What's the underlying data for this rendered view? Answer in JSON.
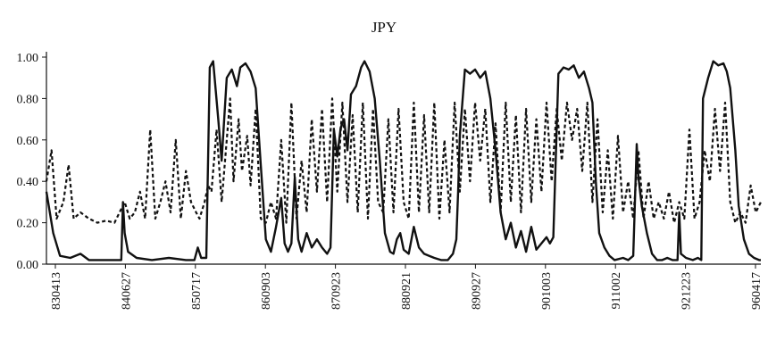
{
  "chart_data": {
    "type": "line",
    "title": "JPY",
    "xlabel": "",
    "ylabel": "",
    "ylim": [
      0,
      1
    ],
    "y_ticks": [
      "0.00",
      "0.20",
      "0.40",
      "0.60",
      "0.80",
      "1.00"
    ],
    "x_ticks": [
      "830413",
      "840627",
      "850717",
      "860903",
      "870923",
      "880921",
      "890927",
      "901003",
      "911002",
      "921223",
      "960417"
    ],
    "grid": false,
    "legend": "none",
    "colors": {
      "ink": "#111111"
    },
    "series": [
      {
        "style": "solid",
        "points": [
          [
            0,
            0.35
          ],
          [
            0.4,
            0.15
          ],
          [
            0.8,
            0.04
          ],
          [
            1.4,
            0.03
          ],
          [
            2.0,
            0.05
          ],
          [
            2.5,
            0.02
          ],
          [
            3.2,
            0.02
          ],
          [
            4.0,
            0.02
          ],
          [
            4.4,
            0.02
          ],
          [
            4.5,
            0.3
          ],
          [
            4.6,
            0.15
          ],
          [
            4.8,
            0.06
          ],
          [
            5.3,
            0.03
          ],
          [
            6.2,
            0.02
          ],
          [
            7.2,
            0.03
          ],
          [
            8.2,
            0.02
          ],
          [
            8.7,
            0.02
          ],
          [
            8.9,
            0.08
          ],
          [
            9.1,
            0.03
          ],
          [
            9.4,
            0.03
          ],
          [
            9.6,
            0.95
          ],
          [
            9.8,
            0.98
          ],
          [
            10.1,
            0.7
          ],
          [
            10.3,
            0.5
          ],
          [
            10.6,
            0.9
          ],
          [
            10.9,
            0.94
          ],
          [
            11.2,
            0.86
          ],
          [
            11.4,
            0.95
          ],
          [
            11.7,
            0.97
          ],
          [
            12.0,
            0.93
          ],
          [
            12.3,
            0.85
          ],
          [
            12.6,
            0.48
          ],
          [
            12.9,
            0.12
          ],
          [
            13.2,
            0.06
          ],
          [
            13.5,
            0.18
          ],
          [
            13.8,
            0.32
          ],
          [
            14.0,
            0.1
          ],
          [
            14.2,
            0.06
          ],
          [
            14.4,
            0.1
          ],
          [
            14.6,
            0.42
          ],
          [
            14.8,
            0.12
          ],
          [
            15.0,
            0.06
          ],
          [
            15.3,
            0.15
          ],
          [
            15.6,
            0.08
          ],
          [
            15.9,
            0.12
          ],
          [
            16.2,
            0.08
          ],
          [
            16.5,
            0.05
          ],
          [
            16.7,
            0.08
          ],
          [
            16.9,
            0.65
          ],
          [
            17.1,
            0.52
          ],
          [
            17.3,
            0.66
          ],
          [
            17.5,
            0.7
          ],
          [
            17.7,
            0.55
          ],
          [
            17.9,
            0.82
          ],
          [
            18.2,
            0.86
          ],
          [
            18.5,
            0.95
          ],
          [
            18.7,
            0.98
          ],
          [
            19.0,
            0.93
          ],
          [
            19.3,
            0.8
          ],
          [
            19.6,
            0.5
          ],
          [
            19.9,
            0.15
          ],
          [
            20.2,
            0.06
          ],
          [
            20.4,
            0.05
          ],
          [
            20.6,
            0.12
          ],
          [
            20.8,
            0.15
          ],
          [
            21.0,
            0.07
          ],
          [
            21.3,
            0.05
          ],
          [
            21.6,
            0.18
          ],
          [
            21.9,
            0.08
          ],
          [
            22.2,
            0.05
          ],
          [
            22.5,
            0.04
          ],
          [
            22.8,
            0.03
          ],
          [
            23.2,
            0.02
          ],
          [
            23.6,
            0.02
          ],
          [
            23.9,
            0.05
          ],
          [
            24.1,
            0.12
          ],
          [
            24.2,
            0.35
          ],
          [
            24.3,
            0.62
          ],
          [
            24.6,
            0.94
          ],
          [
            24.9,
            0.92
          ],
          [
            25.2,
            0.94
          ],
          [
            25.5,
            0.9
          ],
          [
            25.8,
            0.93
          ],
          [
            26.1,
            0.8
          ],
          [
            26.4,
            0.55
          ],
          [
            26.7,
            0.25
          ],
          [
            27.0,
            0.12
          ],
          [
            27.3,
            0.2
          ],
          [
            27.6,
            0.08
          ],
          [
            27.9,
            0.16
          ],
          [
            28.2,
            0.06
          ],
          [
            28.5,
            0.18
          ],
          [
            28.8,
            0.07
          ],
          [
            29.1,
            0.1
          ],
          [
            29.4,
            0.13
          ],
          [
            29.6,
            0.1
          ],
          [
            29.8,
            0.13
          ],
          [
            30.1,
            0.92
          ],
          [
            30.4,
            0.95
          ],
          [
            30.7,
            0.94
          ],
          [
            31.0,
            0.96
          ],
          [
            31.3,
            0.9
          ],
          [
            31.6,
            0.93
          ],
          [
            31.9,
            0.85
          ],
          [
            32.1,
            0.78
          ],
          [
            32.3,
            0.4
          ],
          [
            32.5,
            0.15
          ],
          [
            32.8,
            0.08
          ],
          [
            33.1,
            0.04
          ],
          [
            33.4,
            0.02
          ],
          [
            33.9,
            0.03
          ],
          [
            34.2,
            0.02
          ],
          [
            34.5,
            0.04
          ],
          [
            34.7,
            0.58
          ],
          [
            34.8,
            0.42
          ],
          [
            35.0,
            0.28
          ],
          [
            35.3,
            0.15
          ],
          [
            35.6,
            0.05
          ],
          [
            35.9,
            0.02
          ],
          [
            36.2,
            0.02
          ],
          [
            36.5,
            0.03
          ],
          [
            36.8,
            0.02
          ],
          [
            37.1,
            0.02
          ],
          [
            37.2,
            0.25
          ],
          [
            37.3,
            0.05
          ],
          [
            37.6,
            0.03
          ],
          [
            38.0,
            0.02
          ],
          [
            38.3,
            0.03
          ],
          [
            38.5,
            0.02
          ],
          [
            38.6,
            0.8
          ],
          [
            38.9,
            0.9
          ],
          [
            39.2,
            0.98
          ],
          [
            39.5,
            0.96
          ],
          [
            39.8,
            0.97
          ],
          [
            40.0,
            0.93
          ],
          [
            40.2,
            0.85
          ],
          [
            40.5,
            0.55
          ],
          [
            40.7,
            0.28
          ],
          [
            41.0,
            0.12
          ],
          [
            41.3,
            0.05
          ],
          [
            41.6,
            0.03
          ],
          [
            41.9,
            0.02
          ],
          [
            42.0,
            0.02
          ]
        ]
      },
      {
        "style": "dashed",
        "points": [
          [
            0,
            0.4
          ],
          [
            0.3,
            0.55
          ],
          [
            0.6,
            0.22
          ],
          [
            1.0,
            0.3
          ],
          [
            1.3,
            0.48
          ],
          [
            1.6,
            0.22
          ],
          [
            2.0,
            0.25
          ],
          [
            2.5,
            0.22
          ],
          [
            3.0,
            0.2
          ],
          [
            3.5,
            0.21
          ],
          [
            4.0,
            0.2
          ],
          [
            4.3,
            0.25
          ],
          [
            4.6,
            0.3
          ],
          [
            4.9,
            0.22
          ],
          [
            5.2,
            0.25
          ],
          [
            5.5,
            0.35
          ],
          [
            5.8,
            0.22
          ],
          [
            6.1,
            0.65
          ],
          [
            6.4,
            0.22
          ],
          [
            6.7,
            0.3
          ],
          [
            7.0,
            0.4
          ],
          [
            7.3,
            0.25
          ],
          [
            7.6,
            0.6
          ],
          [
            7.9,
            0.22
          ],
          [
            8.2,
            0.45
          ],
          [
            8.5,
            0.3
          ],
          [
            8.8,
            0.25
          ],
          [
            9.0,
            0.22
          ],
          [
            9.3,
            0.3
          ],
          [
            9.5,
            0.38
          ],
          [
            9.7,
            0.35
          ],
          [
            10.0,
            0.65
          ],
          [
            10.3,
            0.3
          ],
          [
            10.5,
            0.5
          ],
          [
            10.8,
            0.8
          ],
          [
            11.0,
            0.4
          ],
          [
            11.3,
            0.7
          ],
          [
            11.5,
            0.45
          ],
          [
            11.8,
            0.62
          ],
          [
            12.0,
            0.38
          ],
          [
            12.3,
            0.75
          ],
          [
            12.6,
            0.22
          ],
          [
            12.9,
            0.2
          ],
          [
            13.2,
            0.3
          ],
          [
            13.5,
            0.22
          ],
          [
            13.8,
            0.6
          ],
          [
            14.1,
            0.2
          ],
          [
            14.4,
            0.78
          ],
          [
            14.7,
            0.22
          ],
          [
            15.0,
            0.5
          ],
          [
            15.3,
            0.25
          ],
          [
            15.6,
            0.7
          ],
          [
            15.9,
            0.35
          ],
          [
            16.2,
            0.75
          ],
          [
            16.5,
            0.3
          ],
          [
            16.8,
            0.8
          ],
          [
            17.1,
            0.35
          ],
          [
            17.4,
            0.78
          ],
          [
            17.7,
            0.3
          ],
          [
            18.0,
            0.72
          ],
          [
            18.3,
            0.25
          ],
          [
            18.6,
            0.78
          ],
          [
            18.9,
            0.22
          ],
          [
            19.2,
            0.75
          ],
          [
            19.5,
            0.3
          ],
          [
            19.8,
            0.25
          ],
          [
            20.1,
            0.7
          ],
          [
            20.4,
            0.25
          ],
          [
            20.7,
            0.75
          ],
          [
            21.0,
            0.3
          ],
          [
            21.3,
            0.22
          ],
          [
            21.6,
            0.78
          ],
          [
            21.9,
            0.25
          ],
          [
            22.2,
            0.72
          ],
          [
            22.5,
            0.25
          ],
          [
            22.8,
            0.78
          ],
          [
            23.1,
            0.22
          ],
          [
            23.4,
            0.6
          ],
          [
            23.7,
            0.25
          ],
          [
            24.0,
            0.78
          ],
          [
            24.3,
            0.35
          ],
          [
            24.6,
            0.75
          ],
          [
            24.9,
            0.4
          ],
          [
            25.2,
            0.78
          ],
          [
            25.5,
            0.5
          ],
          [
            25.8,
            0.75
          ],
          [
            26.1,
            0.3
          ],
          [
            26.4,
            0.68
          ],
          [
            26.7,
            0.25
          ],
          [
            27.0,
            0.78
          ],
          [
            27.3,
            0.3
          ],
          [
            27.6,
            0.72
          ],
          [
            27.9,
            0.25
          ],
          [
            28.2,
            0.75
          ],
          [
            28.5,
            0.3
          ],
          [
            28.8,
            0.7
          ],
          [
            29.1,
            0.35
          ],
          [
            29.4,
            0.78
          ],
          [
            29.7,
            0.4
          ],
          [
            30.0,
            0.75
          ],
          [
            30.3,
            0.5
          ],
          [
            30.6,
            0.78
          ],
          [
            30.9,
            0.6
          ],
          [
            31.2,
            0.75
          ],
          [
            31.5,
            0.45
          ],
          [
            31.8,
            0.78
          ],
          [
            32.1,
            0.3
          ],
          [
            32.4,
            0.7
          ],
          [
            32.7,
            0.25
          ],
          [
            33.0,
            0.55
          ],
          [
            33.3,
            0.22
          ],
          [
            33.6,
            0.62
          ],
          [
            33.9,
            0.25
          ],
          [
            34.2,
            0.4
          ],
          [
            34.5,
            0.22
          ],
          [
            34.8,
            0.55
          ],
          [
            35.1,
            0.22
          ],
          [
            35.4,
            0.4
          ],
          [
            35.7,
            0.22
          ],
          [
            36.0,
            0.3
          ],
          [
            36.3,
            0.22
          ],
          [
            36.6,
            0.35
          ],
          [
            36.9,
            0.2
          ],
          [
            37.2,
            0.3
          ],
          [
            37.5,
            0.22
          ],
          [
            37.8,
            0.65
          ],
          [
            38.1,
            0.22
          ],
          [
            38.4,
            0.3
          ],
          [
            38.7,
            0.55
          ],
          [
            39.0,
            0.4
          ],
          [
            39.3,
            0.75
          ],
          [
            39.6,
            0.45
          ],
          [
            39.9,
            0.78
          ],
          [
            40.2,
            0.3
          ],
          [
            40.5,
            0.2
          ],
          [
            40.8,
            0.25
          ],
          [
            41.1,
            0.2
          ],
          [
            41.4,
            0.38
          ],
          [
            41.7,
            0.25
          ],
          [
            42.0,
            0.3
          ]
        ]
      }
    ]
  }
}
